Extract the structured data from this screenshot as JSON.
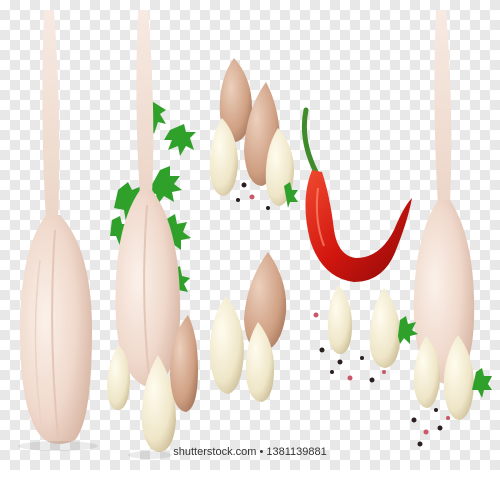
{
  "image": {
    "background": "transparent-checkerboard",
    "subjects": [
      "garlic-bulb",
      "garlic-clove",
      "red-chili-pepper",
      "parsley-sprig",
      "peppercorns"
    ],
    "colors": {
      "garlic": "#f2ded3",
      "garlic_shadow": "#d9b9a8",
      "clove": "#f3eed8",
      "clove_skin": "#d7a98c",
      "chili": "#d2160f",
      "chili_stem": "#3f8a2a",
      "parsley": "#2fa12a",
      "pepper_black": "#2a2020",
      "pepper_pink": "#c9586a"
    }
  },
  "watermark": {
    "text": "shutterstock.com • 1381139881"
  }
}
